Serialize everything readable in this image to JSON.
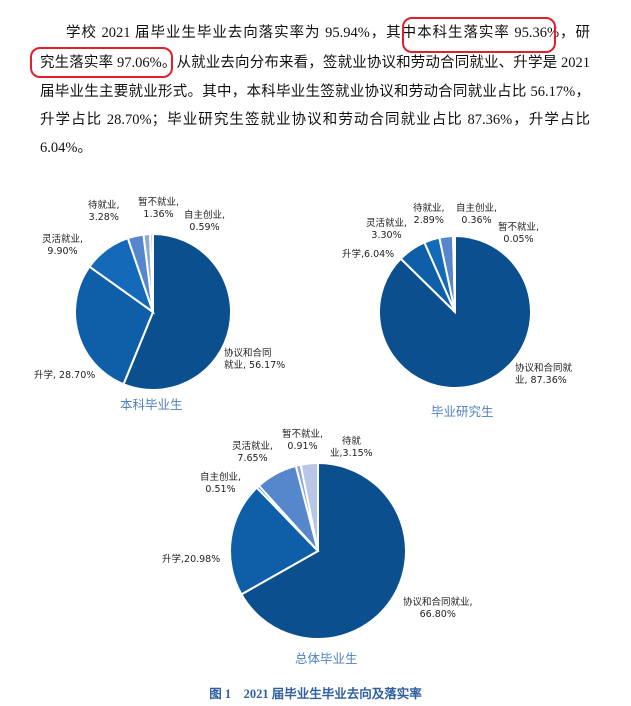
{
  "paragraph": {
    "line1": {
      "a": "学校 2021 届毕业生毕业去向落实率为 95.94%，其中",
      "b": "本科生落实率 95.36%，",
      "c": "研"
    },
    "line2": {
      "a": "究生落实率 97.06%。",
      "b": "从就业去向分布来看，签就业协议和劳动合同就业、升学是 2021"
    },
    "line3": "届毕业生主要就业形式。其中，本科毕业生签就业协议和劳动合同就业占比 56.17%，",
    "line4": "升学占比 28.70%；毕业研究生签就业协议和劳动合同就业占比 87.36%，升学占比",
    "line5": "6.04%。"
  },
  "highlight_color": "#e0202a",
  "caption": "图 1　2021 届毕业生毕业去向及落实率",
  "chart_data": [
    {
      "type": "pie",
      "title": "本科毕业生",
      "slices": [
        {
          "label": "协议和合同就业",
          "value": 56.17,
          "text": "协议和合同\n就业, 56.17%",
          "color": "#0b4f8f"
        },
        {
          "label": "升学",
          "value": 28.7,
          "text": "升学, 28.70%",
          "color": "#0e5ea8"
        },
        {
          "label": "灵活就业",
          "value": 9.9,
          "text": "灵活就业,\n9.90%",
          "color": "#1469b8"
        },
        {
          "label": "待就业",
          "value": 3.28,
          "text": "待就业,\n3.28%",
          "color": "#5686cc"
        },
        {
          "label": "暂不就业",
          "value": 1.36,
          "text": "暂不就业,\n1.36%",
          "color": "#8fa9da"
        },
        {
          "label": "自主创业",
          "value": 0.59,
          "text": "自主创业,\n0.59%",
          "color": "#b9c6e6"
        }
      ]
    },
    {
      "type": "pie",
      "title": "毕业研究生",
      "slices": [
        {
          "label": "协议和合同就业",
          "value": 87.36,
          "text": "协议和合同就\n业, 87.36%",
          "color": "#0b4f8f"
        },
        {
          "label": "升学",
          "value": 6.04,
          "text": "升学,6.04%",
          "color": "#0e5ea8"
        },
        {
          "label": "灵活就业",
          "value": 3.3,
          "text": "灵活就业,\n3.30%",
          "color": "#1469b8"
        },
        {
          "label": "待就业",
          "value": 2.89,
          "text": "待就业,\n2.89%",
          "color": "#5686cc"
        },
        {
          "label": "自主创业",
          "value": 0.36,
          "text": "自主创业,\n0.36%",
          "color": "#8fa9da"
        },
        {
          "label": "暂不就业",
          "value": 0.05,
          "text": "暂不就业,\n0.05%",
          "color": "#b9c6e6"
        }
      ]
    },
    {
      "type": "pie",
      "title": "总体毕业生",
      "slices": [
        {
          "label": "协议和合同就业",
          "value": 66.8,
          "text": "协议和合同就业,\n66.80%",
          "color": "#0b4f8f"
        },
        {
          "label": "升学",
          "value": 20.98,
          "text": "升学,20.98%",
          "color": "#0e5ea8"
        },
        {
          "label": "自主创业",
          "value": 0.51,
          "text": "自主创业,\n0.51%",
          "color": "#1469b8"
        },
        {
          "label": "灵活就业",
          "value": 7.65,
          "text": "灵活就业,\n7.65%",
          "color": "#5686cc"
        },
        {
          "label": "暂不就业",
          "value": 0.91,
          "text": "暂不就业,\n0.91%",
          "color": "#8fa9da"
        },
        {
          "label": "待就业",
          "value": 3.15,
          "text": "待就\n业,3.15%",
          "color": "#b9c6e6"
        }
      ]
    }
  ]
}
